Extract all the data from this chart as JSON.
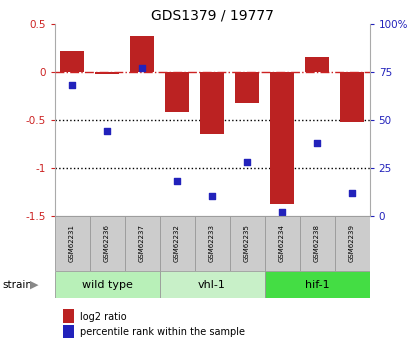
{
  "title": "GDS1379 / 19777",
  "samples": [
    "GSM62231",
    "GSM62236",
    "GSM62237",
    "GSM62232",
    "GSM62233",
    "GSM62235",
    "GSM62234",
    "GSM62238",
    "GSM62239"
  ],
  "log2_ratio": [
    0.22,
    -0.02,
    0.38,
    -0.42,
    -0.65,
    -0.32,
    -1.38,
    0.16,
    -0.52
  ],
  "percentile_rank": [
    68,
    44,
    77,
    18,
    10,
    28,
    2,
    38,
    12
  ],
  "groups": [
    {
      "label": "wild type",
      "start": 0,
      "end": 3,
      "color": "#b8f0b8"
    },
    {
      "label": "vhl-1",
      "start": 3,
      "end": 6,
      "color": "#c8f0c8"
    },
    {
      "label": "hif-1",
      "start": 6,
      "end": 9,
      "color": "#44dd44"
    }
  ],
  "ylim_left": [
    -1.5,
    0.5
  ],
  "ylim_right": [
    0,
    100
  ],
  "bar_color": "#bb2222",
  "dot_color": "#2222bb",
  "hline_color": "#cc2222",
  "dotline_color": "#000000",
  "bg_color": "#ffffff",
  "plot_bg": "#ffffff",
  "label_color_left": "#cc2222",
  "label_color_right": "#2222bb",
  "strain_label": "strain",
  "legend_bar": "log2 ratio",
  "legend_dot": "percentile rank within the sample",
  "sample_box_color": "#cccccc",
  "sample_box_edge": "#999999"
}
